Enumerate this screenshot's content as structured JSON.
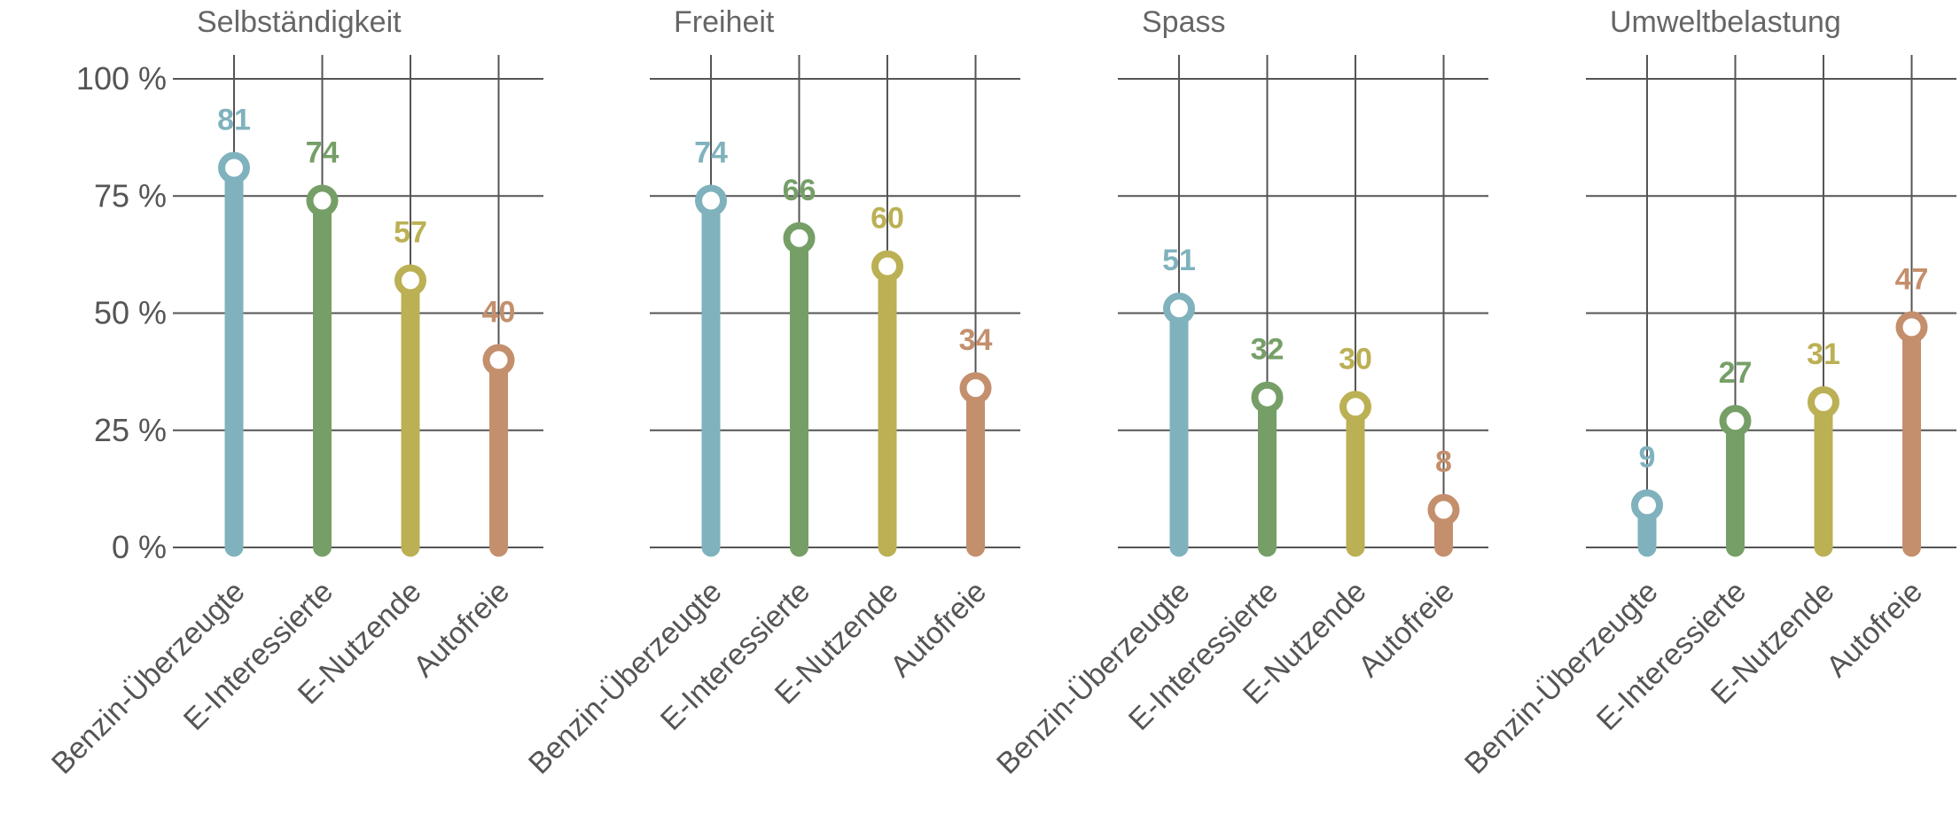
{
  "chart_data": {
    "type": "lollipop",
    "ylim": [
      0,
      100
    ],
    "yticks": [
      0,
      25,
      50,
      75,
      100
    ],
    "ytick_labels": [
      "0 %",
      "25 %",
      "50 %",
      "75 %",
      "100 %"
    ],
    "categories": [
      "Benzin-Überzeugte",
      "E-Interessierte",
      "E-Nutzende",
      "Autofreie"
    ],
    "colors": [
      "#7fb2bd",
      "#769f67",
      "#bbb054",
      "#c48f6c"
    ],
    "grid": true,
    "panels": [
      {
        "title": "Selbständigkeit",
        "values": [
          81,
          74,
          57,
          40
        ]
      },
      {
        "title": "Freiheit",
        "values": [
          74,
          66,
          60,
          34
        ]
      },
      {
        "title": "Spass",
        "values": [
          51,
          32,
          30,
          8
        ]
      },
      {
        "title": "Umweltbelastung",
        "values": [
          9,
          27,
          31,
          47
        ]
      }
    ]
  }
}
